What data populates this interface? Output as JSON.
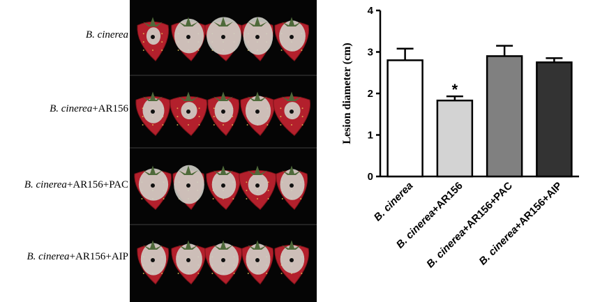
{
  "panel_labels": [
    {
      "pathogen": "B. cinerea",
      "suffix": ""
    },
    {
      "pathogen": "B. cinerea",
      "suffix": "+AR156"
    },
    {
      "pathogen": "B. cinerea",
      "suffix": "+AR156+PAC"
    },
    {
      "pathogen": "B. cinerea",
      "suffix": "+AR156+AIP"
    }
  ],
  "colors": {
    "photo_bg": "#050505",
    "berry": "#b3202c",
    "berry_dark": "#7a1118",
    "mold": "#cfcfc8",
    "leaf": "#4e6a3a"
  },
  "chart_data": {
    "type": "bar",
    "categories": [
      {
        "pathogen": "B. cinerea",
        "suffix": ""
      },
      {
        "pathogen": "B. cinerea",
        "suffix": "+AR156"
      },
      {
        "pathogen": "B. cinerea",
        "suffix": "+AR156+PAC"
      },
      {
        "pathogen": "B. cinerea",
        "suffix": "+AR156+AIP"
      }
    ],
    "values": [
      2.8,
      1.83,
      2.9,
      2.75
    ],
    "errors": [
      0.28,
      0.1,
      0.25,
      0.1
    ],
    "annotations": [
      "",
      "*",
      "",
      ""
    ],
    "bar_colors": [
      "#ffffff",
      "#d3d3d3",
      "#808080",
      "#333333"
    ],
    "ylabel": "Lesion diameter (cm)",
    "ylim": [
      0,
      4
    ],
    "yticks": [
      "0",
      "1",
      "2",
      "3",
      "4"
    ],
    "grid": false
  }
}
